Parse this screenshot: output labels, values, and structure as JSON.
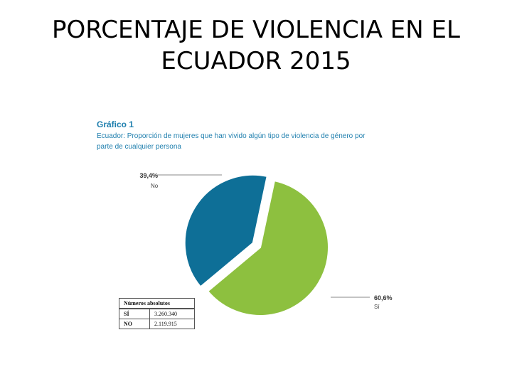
{
  "slide": {
    "title_line1": "PORCENTAJE DE VIOLENCIA EN EL",
    "title_line2": "ECUADOR 2015"
  },
  "figure": {
    "heading": "Gráfico 1",
    "subtitle": "Ecuador: Proporción de mujeres que han vivido algún tipo de violencia de género por parte de cualquier persona"
  },
  "chart_data": {
    "type": "pie",
    "slices": [
      {
        "label": "Sí",
        "value": 60.6,
        "display": "60,6%",
        "color": "#8dc03f"
      },
      {
        "label": "No",
        "value": 39.4,
        "display": "39,4%",
        "color": "#0e6f97",
        "exploded": true
      }
    ]
  },
  "table": {
    "header": "Números absolutos",
    "rows": [
      {
        "label": "SÍ",
        "value": "3.260.340"
      },
      {
        "label": "NO",
        "value": "2.119.915"
      }
    ]
  }
}
